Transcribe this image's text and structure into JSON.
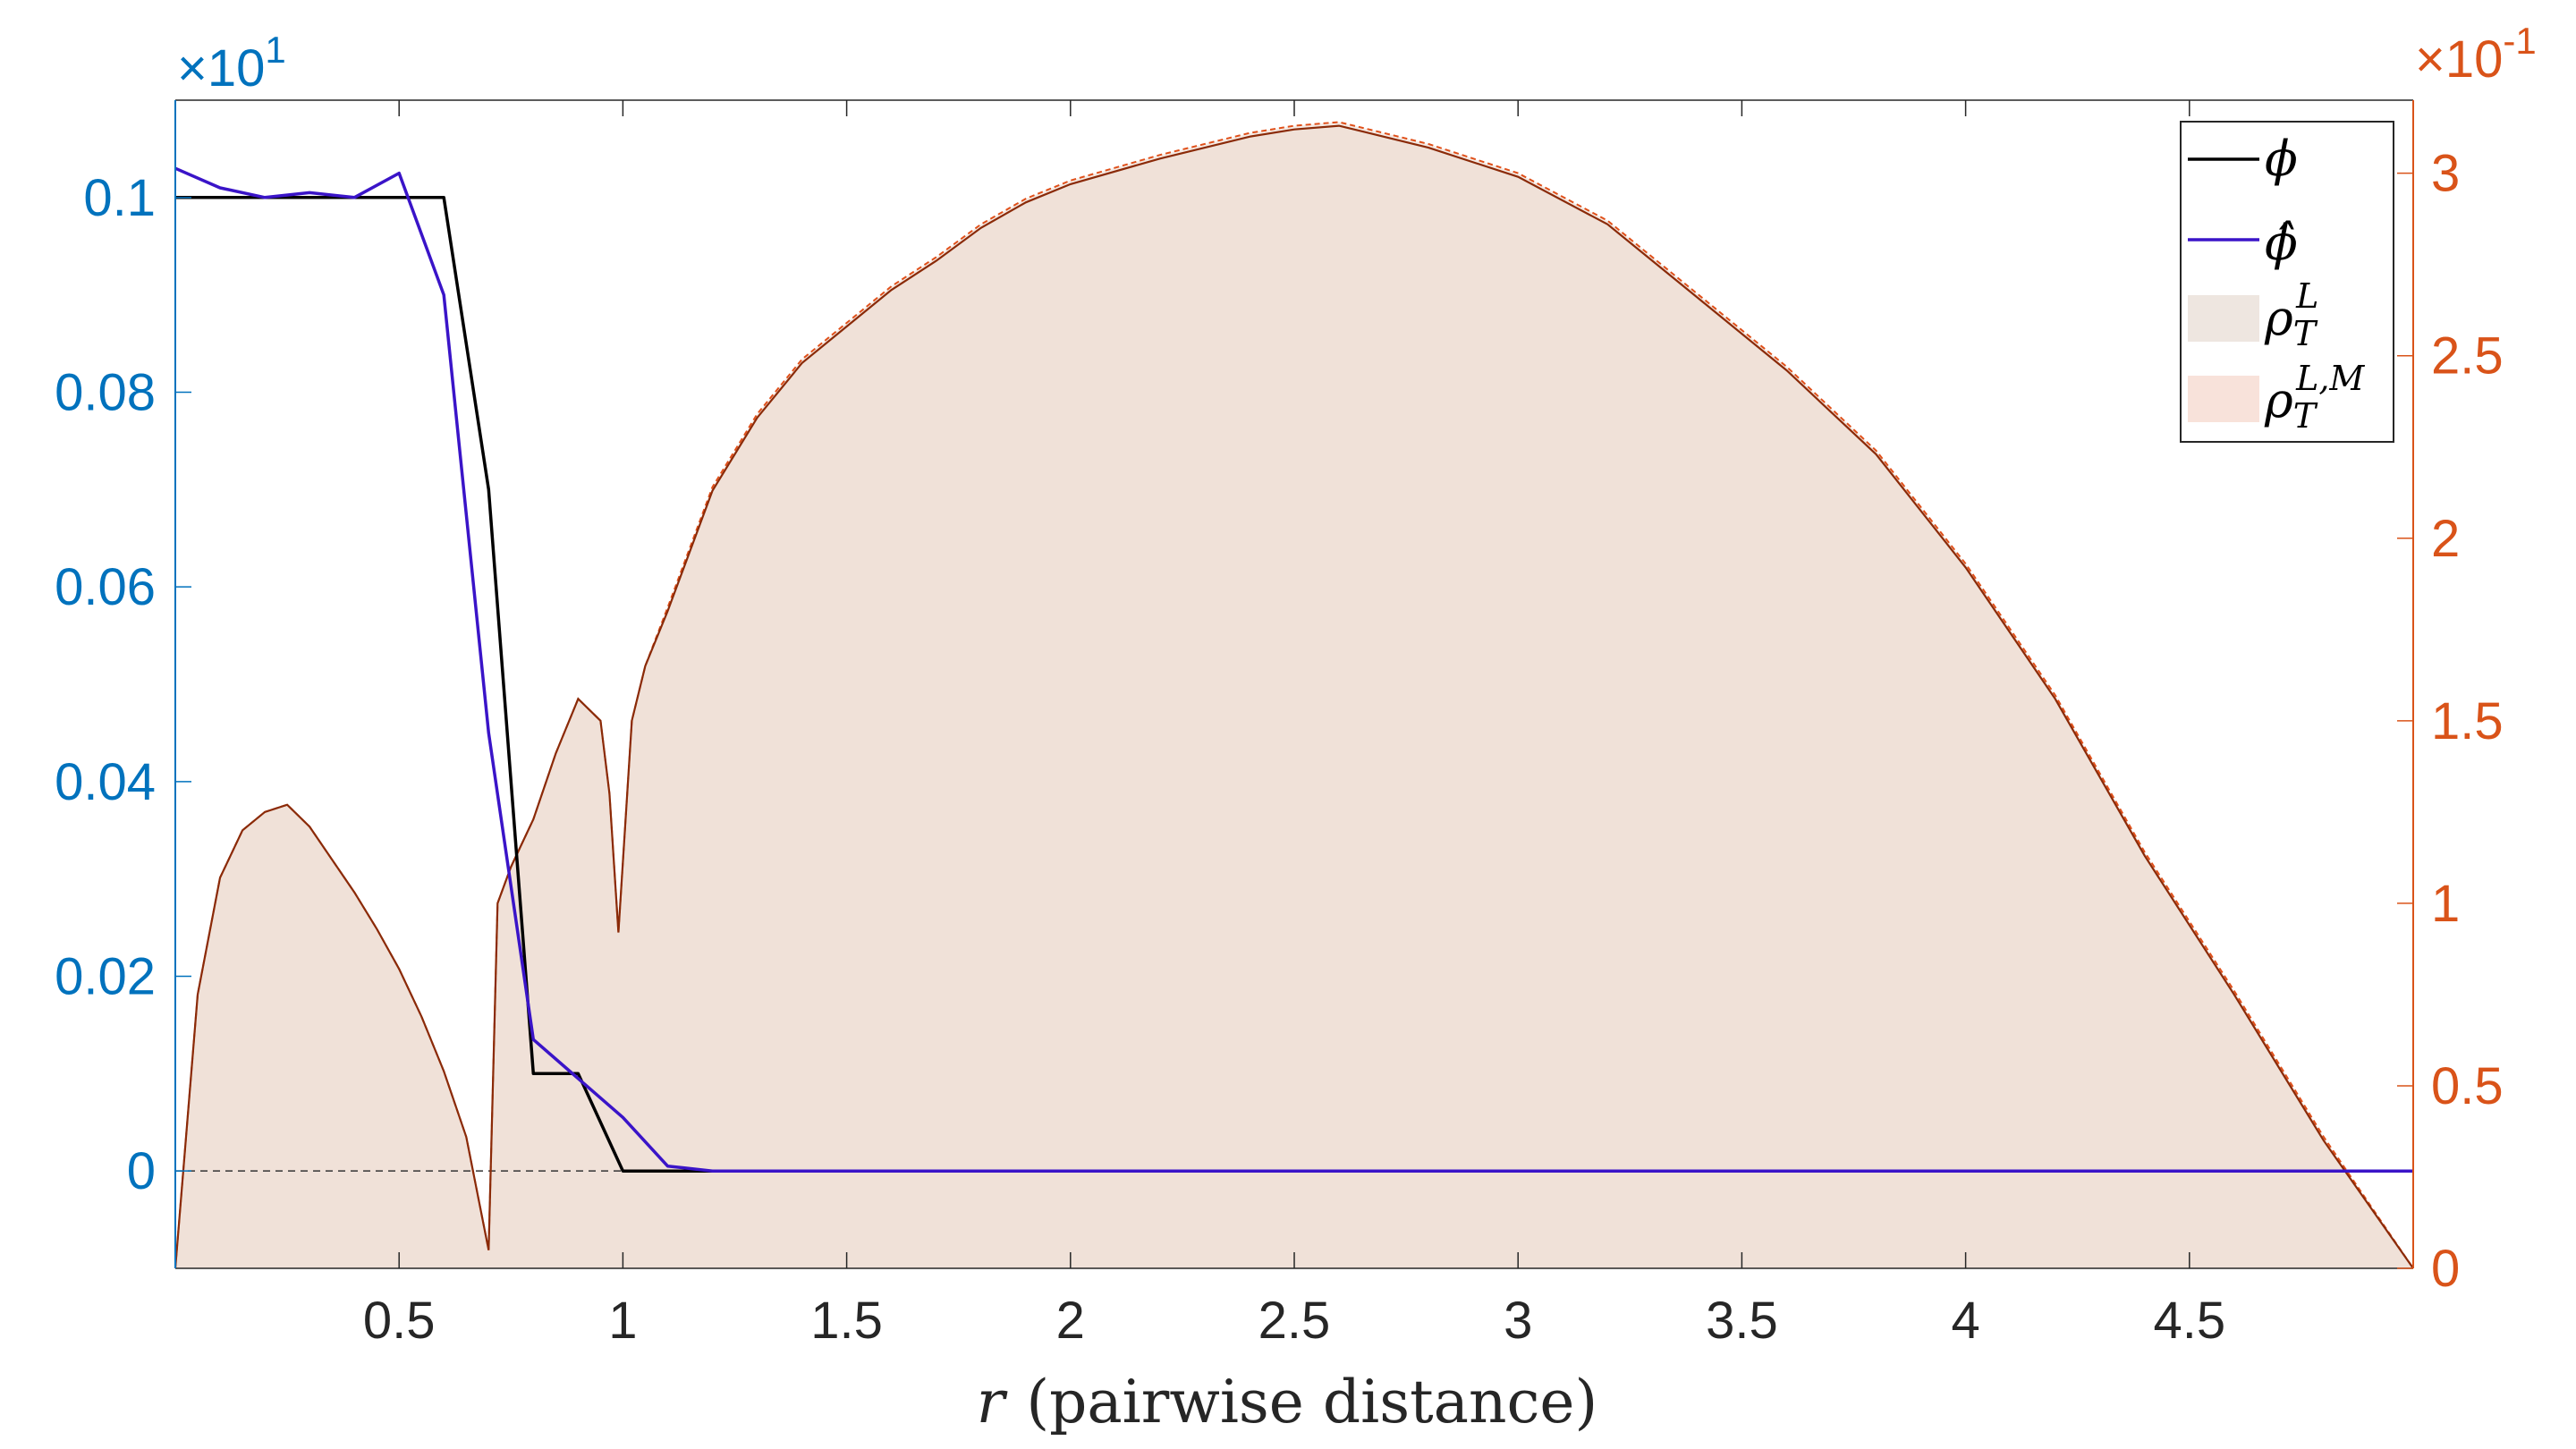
{
  "colors": {
    "left_axis": "#0072BD",
    "right_axis": "#D95319",
    "phi": "#000000",
    "phi_hat": "#3A14C8",
    "rho_fill": "#EEDDD3",
    "rho_line": "#8A2A08",
    "rho_line_est": "#E0501A",
    "axis_box": "#262626"
  },
  "chart_data": {
    "type": "line",
    "xlabel_var": "r",
    "xlabel_text": "(pairwise distance)",
    "x_ticks": [
      0.5,
      1,
      1.5,
      2,
      2.5,
      3,
      3.5,
      4,
      4.5
    ],
    "x_tick_labels": [
      "0.5",
      "1",
      "1.5",
      "2",
      "2.5",
      "3",
      "3.5",
      "4",
      "4.5"
    ],
    "xlim": [
      0,
      5
    ],
    "left_axis": {
      "ylim": [
        -0.01,
        0.11
      ],
      "ticks": [
        0,
        0.02,
        0.04,
        0.06,
        0.08,
        0.1
      ],
      "tick_labels": [
        "0",
        "0.02",
        "0.04",
        "0.06",
        "0.08",
        "0.1"
      ],
      "exponent_base": "×10",
      "exponent_power": "1"
    },
    "right_axis": {
      "ylim": [
        0,
        0.32
      ],
      "ticks": [
        0,
        0.05,
        0.1,
        0.15,
        0.2,
        0.25,
        0.3
      ],
      "tick_labels": [
        "0",
        "0.5",
        "1",
        "1.5",
        "2",
        "2.5",
        "3"
      ],
      "exponent_base": "×10",
      "exponent_power": "-1"
    },
    "zero_line_y": 0,
    "legend": {
      "placement": "top-right",
      "entries": [
        {
          "key": "phi",
          "label": "ϕ",
          "kind": "line"
        },
        {
          "key": "phi_hat",
          "label": "ϕ̂",
          "kind": "line"
        },
        {
          "key": "rho_L",
          "label_base": "ρ",
          "label_sup": "L",
          "label_sub": "T",
          "kind": "patch"
        },
        {
          "key": "rho_LM",
          "label_base": "ρ",
          "label_sup": "L,M",
          "label_sub": "T",
          "kind": "patch"
        }
      ]
    },
    "series": [
      {
        "key": "phi",
        "axis": "left",
        "x": [
          0,
          0.6,
          0.7,
          0.8,
          0.9,
          1.0,
          5.0
        ],
        "y": [
          0.1,
          0.1,
          0.07,
          0.01,
          0.01,
          0.0,
          0.0
        ]
      },
      {
        "key": "phi_hat",
        "axis": "left",
        "x": [
          0,
          0.1,
          0.2,
          0.3,
          0.4,
          0.5,
          0.6,
          0.7,
          0.8,
          0.9,
          1.0,
          1.1,
          1.2,
          1.3,
          5.0
        ],
        "y": [
          0.103,
          0.101,
          0.1,
          0.1005,
          0.1,
          0.1025,
          0.09,
          0.045,
          0.0135,
          0.0095,
          0.0055,
          0.0005,
          0.0,
          0.0,
          0.0
        ]
      },
      {
        "key": "rho_L",
        "axis": "right",
        "x": [
          0,
          0.05,
          0.1,
          0.15,
          0.2,
          0.25,
          0.3,
          0.35,
          0.4,
          0.45,
          0.5,
          0.55,
          0.6,
          0.65,
          0.7,
          0.72,
          0.75,
          0.8,
          0.85,
          0.9,
          0.95,
          0.97,
          0.99,
          1.02,
          1.05,
          1.1,
          1.2,
          1.3,
          1.4,
          1.5,
          1.6,
          1.7,
          1.8,
          1.9,
          2.0,
          2.2,
          2.4,
          2.5,
          2.6,
          2.7,
          2.8,
          3.0,
          3.2,
          3.4,
          3.6,
          3.8,
          4.0,
          4.2,
          4.4,
          4.6,
          4.8,
          5.0
        ],
        "y": [
          0,
          0.075,
          0.107,
          0.12,
          0.125,
          0.127,
          0.121,
          0.112,
          0.103,
          0.093,
          0.082,
          0.069,
          0.054,
          0.036,
          0.005,
          0.1,
          0.11,
          0.123,
          0.141,
          0.156,
          0.15,
          0.13,
          0.092,
          0.15,
          0.165,
          0.18,
          0.213,
          0.233,
          0.248,
          0.258,
          0.268,
          0.276,
          0.285,
          0.292,
          0.297,
          0.304,
          0.31,
          0.312,
          0.313,
          0.31,
          0.307,
          0.299,
          0.286,
          0.266,
          0.246,
          0.223,
          0.192,
          0.156,
          0.113,
          0.075,
          0.035,
          0
        ]
      },
      {
        "key": "rho_LM",
        "axis": "right",
        "x": [
          0,
          0.05,
          0.1,
          0.15,
          0.2,
          0.25,
          0.3,
          0.35,
          0.4,
          0.45,
          0.5,
          0.55,
          0.6,
          0.65,
          0.7,
          0.72,
          0.75,
          0.8,
          0.85,
          0.9,
          0.95,
          0.97,
          0.99,
          1.02,
          1.05,
          1.1,
          1.2,
          1.3,
          1.4,
          1.5,
          1.6,
          1.7,
          1.8,
          1.9,
          2.0,
          2.2,
          2.4,
          2.5,
          2.6,
          2.7,
          2.8,
          3.0,
          3.2,
          3.4,
          3.6,
          3.8,
          4.0,
          4.2,
          4.4,
          4.6,
          4.8,
          5.0
        ],
        "y": [
          0,
          0.075,
          0.107,
          0.12,
          0.125,
          0.127,
          0.121,
          0.112,
          0.103,
          0.093,
          0.082,
          0.069,
          0.054,
          0.036,
          0.005,
          0.1,
          0.11,
          0.123,
          0.141,
          0.156,
          0.15,
          0.13,
          0.092,
          0.15,
          0.165,
          0.181,
          0.214,
          0.234,
          0.249,
          0.259,
          0.269,
          0.277,
          0.286,
          0.293,
          0.298,
          0.305,
          0.311,
          0.313,
          0.314,
          0.311,
          0.308,
          0.3,
          0.287,
          0.267,
          0.247,
          0.224,
          0.193,
          0.157,
          0.114,
          0.076,
          0.036,
          0
        ]
      }
    ]
  }
}
